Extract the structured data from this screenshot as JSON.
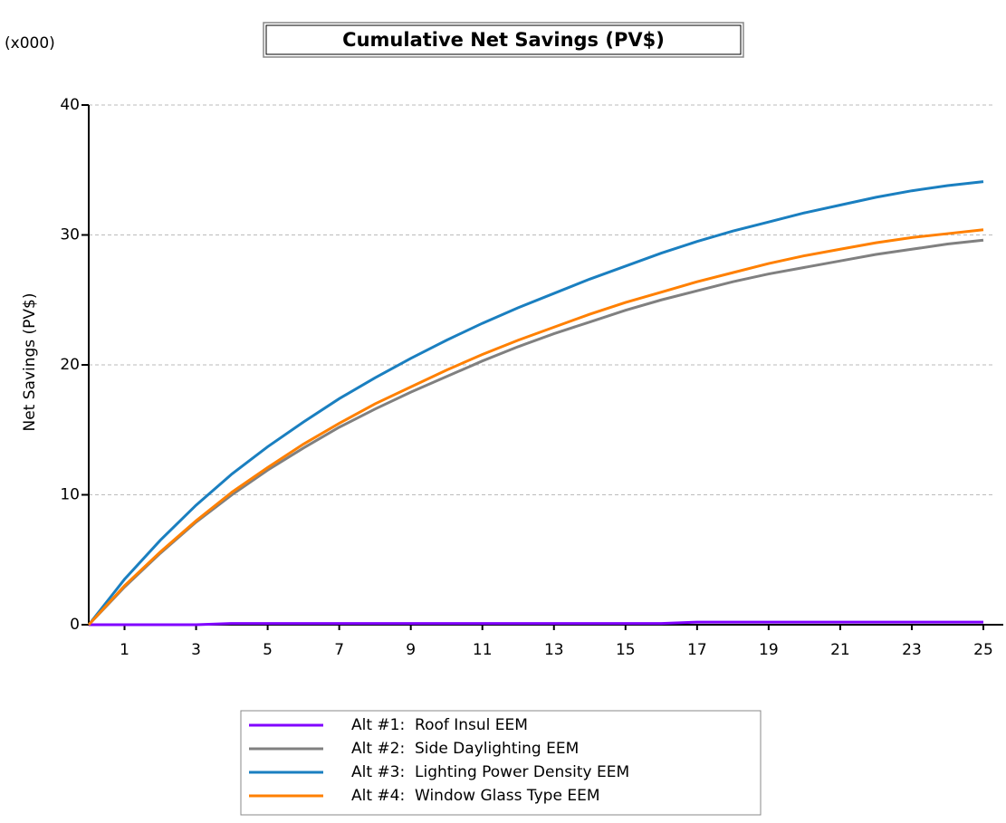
{
  "chart_data": {
    "type": "line",
    "title": "Cumulative Net Savings (PV$)",
    "y_unit": "(x000)",
    "ylabel": "Net Savings (PV$)",
    "x": [
      0,
      1,
      2,
      3,
      4,
      5,
      6,
      7,
      8,
      9,
      10,
      11,
      12,
      13,
      14,
      15,
      16,
      17,
      18,
      19,
      20,
      21,
      22,
      23,
      24,
      25
    ],
    "xlim": [
      0,
      25
    ],
    "xticks": [
      1,
      3,
      5,
      7,
      9,
      11,
      13,
      15,
      17,
      19,
      21,
      23,
      25
    ],
    "ylim": [
      0,
      40
    ],
    "yticks": [
      0,
      10,
      20,
      30,
      40
    ],
    "grid": true,
    "legend": "bottom",
    "series": [
      {
        "name": "Alt #1:  Roof Insul EEM",
        "color": "#8000ff",
        "values": [
          0,
          0,
          0,
          0,
          0.1,
          0.1,
          0.1,
          0.1,
          0.1,
          0.1,
          0.1,
          0.1,
          0.1,
          0.1,
          0.1,
          0.1,
          0.1,
          0.2,
          0.2,
          0.2,
          0.2,
          0.2,
          0.2,
          0.2,
          0.2,
          0.2
        ]
      },
      {
        "name": "Alt #2:  Side Daylighting EEM",
        "color": "#808080",
        "values": [
          0,
          2.9,
          5.5,
          7.9,
          10.0,
          11.9,
          13.6,
          15.2,
          16.6,
          17.9,
          19.1,
          20.3,
          21.4,
          22.4,
          23.3,
          24.2,
          25.0,
          25.7,
          26.4,
          27.0,
          27.5,
          28.0,
          28.5,
          28.9,
          29.3,
          29.6
        ]
      },
      {
        "name": "Alt #3:  Lighting Power Density EEM",
        "color": "#1a7fc0",
        "values": [
          0,
          3.5,
          6.5,
          9.2,
          11.6,
          13.7,
          15.6,
          17.4,
          19.0,
          20.5,
          21.9,
          23.2,
          24.4,
          25.5,
          26.6,
          27.6,
          28.6,
          29.5,
          30.3,
          31.0,
          31.7,
          32.3,
          32.9,
          33.4,
          33.8,
          34.1
        ]
      },
      {
        "name": "Alt #4:  Window Glass Type EEM",
        "color": "#ff8000",
        "values": [
          0,
          3.0,
          5.6,
          8.0,
          10.2,
          12.1,
          13.9,
          15.5,
          17.0,
          18.3,
          19.6,
          20.8,
          21.9,
          22.9,
          23.9,
          24.8,
          25.6,
          26.4,
          27.1,
          27.8,
          28.4,
          28.9,
          29.4,
          29.8,
          30.1,
          30.4
        ]
      }
    ]
  }
}
